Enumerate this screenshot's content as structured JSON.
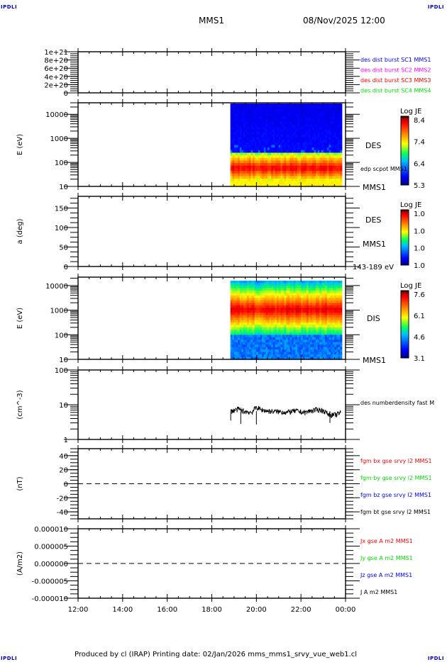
{
  "header": {
    "corner_mark": "IPDLI",
    "spacecraft": "MMS1",
    "datetime": "08/Nov/2025 12:00"
  },
  "footer": {
    "text": "Produced by cl (IRAP)   Printing date: 02/Jan/2026   mms_mms1_srvy_vue_web1.cl"
  },
  "colors": {
    "blue": "#0000ff",
    "magenta": "#ff00ff",
    "red": "#ff0000",
    "green": "#00e000",
    "black": "#000000"
  },
  "chart_data": {
    "type": "multi-panel time series",
    "x_axis": {
      "range": [
        "12:00",
        "00:00"
      ],
      "tick_labels": [
        "12:00",
        "14:00",
        "16:00",
        "18:00",
        "20:00",
        "22:00",
        "00:00"
      ],
      "data_coverage": [
        "18:50",
        "23:50"
      ]
    },
    "panels": [
      {
        "id": "p1",
        "type": "line",
        "ylabel": "",
        "yscale": "linear",
        "ylim": [
          0,
          1e+21
        ],
        "yticks": [
          0,
          2e+20,
          4e+20,
          6e+20,
          8e+20,
          1e+21
        ],
        "ytick_labels": [
          "0",
          "2e+20",
          "4e+20",
          "6e+20",
          "8e+20",
          "1e+21"
        ],
        "zero_line": true,
        "legend": [
          {
            "label": "des dist burst SC1 MMS1",
            "color": "#0000ff"
          },
          {
            "label": "des dist burst SC2 MMS2",
            "color": "#ff00ff"
          },
          {
            "label": "des dist burst SC3 MMS3",
            "color": "#ff0000"
          },
          {
            "label": "des dist burst SC4 MMS4",
            "color": "#00e000"
          }
        ],
        "series": []
      },
      {
        "id": "p2",
        "type": "heatmap",
        "ylabel": "E (eV)",
        "yscale": "log",
        "ylim": [
          10,
          30000
        ],
        "ytick_labels": [
          "10",
          "100",
          "1000",
          "10000"
        ],
        "right_labels": [
          "DES",
          "edp scpot MMS1",
          "MMS1"
        ],
        "colorbar": {
          "title": "Log JE",
          "min": 5.3,
          "max": 8.4,
          "tick_labels": [
            "8.4",
            "7.4",
            "6.4",
            "5.3"
          ]
        },
        "description": "Electron spectrogram: peak flux ~40-100 eV (red), falling to blue above ~700 eV",
        "peak_energy_eV": 60,
        "cutoff_energy_eV": 700
      },
      {
        "id": "p3",
        "type": "heatmap",
        "ylabel": "a (deg)",
        "yscale": "linear",
        "ylim": [
          0,
          180
        ],
        "ytick_labels": [
          "0",
          "50",
          "100",
          "150"
        ],
        "right_labels": [
          "DES",
          "MMS1",
          "143-189 eV"
        ],
        "colorbar": {
          "title": "Log JE",
          "min": 1.0,
          "max": 1.0,
          "tick_labels": [
            "1.0",
            "1.0",
            "1.0",
            "1.0"
          ]
        },
        "description": "Empty pitch-angle panel"
      },
      {
        "id": "p4",
        "type": "heatmap",
        "ylabel": "E (eV)",
        "yscale": "log",
        "ylim": [
          10,
          22000
        ],
        "ytick_labels": [
          "10",
          "100",
          "1000",
          "10000"
        ],
        "right_labels": [
          "DIS",
          "MMS1"
        ],
        "colorbar": {
          "title": "Log JE",
          "min": 3.1,
          "max": 7.6,
          "tick_labels": [
            "7.6",
            "6.1",
            "4.6",
            "3.1"
          ]
        },
        "description": "Ion spectrogram: peak flux ~1000-3000 eV (red), blue below ~100 eV",
        "peak_energy_eV": 1800
      },
      {
        "id": "p5",
        "type": "line",
        "ylabel": "(cm^-3)",
        "yscale": "log",
        "ylim": [
          1,
          100
        ],
        "ytick_labels": [
          "1",
          "10",
          "100"
        ],
        "legend": [
          {
            "label": "des numberdensity fast M",
            "color": "#000000"
          }
        ],
        "series": [
          {
            "name": "des numberdensity fast",
            "x_hours": [
              18.85,
              19.0,
              19.2,
              19.4,
              19.6,
              19.8,
              20.0,
              20.2,
              20.4,
              20.6,
              20.8,
              21.0,
              21.2,
              21.4,
              21.6,
              21.8,
              22.0,
              22.2,
              22.4,
              22.6,
              22.8,
              23.0,
              23.2,
              23.4,
              23.6,
              23.8
            ],
            "y": [
              6.5,
              6.8,
              7.5,
              6.5,
              6.2,
              6.0,
              8.5,
              7.2,
              6.8,
              6.5,
              6.4,
              6.3,
              6.2,
              6.0,
              6.5,
              6.6,
              6.2,
              6.0,
              6.6,
              7.0,
              7.2,
              6.8,
              5.5,
              5.0,
              5.2,
              6.0
            ]
          }
        ]
      },
      {
        "id": "p6",
        "type": "line",
        "ylabel": "(nT)",
        "yscale": "linear",
        "ylim": [
          -50,
          50
        ],
        "yticks": [
          -40,
          -20,
          0,
          20,
          40
        ],
        "ytick_labels": [
          "-40",
          "-20",
          "0",
          "20",
          "40"
        ],
        "zero_line": true,
        "legend": [
          {
            "label": "fgm bx gse srvy l2 MMS1",
            "color": "#ff0000"
          },
          {
            "label": "fgm by gse srvy l2 MMS1",
            "color": "#00e000"
          },
          {
            "label": "fgm bz gse srvy l2 MMS1",
            "color": "#0000ff"
          },
          {
            "label": "fgm bt gse srvy l2 MMS1",
            "color": "#000000"
          }
        ],
        "series": []
      },
      {
        "id": "p7",
        "type": "line",
        "ylabel": "(A/m2)",
        "yscale": "linear",
        "ylim": [
          -1e-05,
          1e-05
        ],
        "yticks": [
          -1e-05,
          -5e-06,
          0,
          5e-06,
          1e-05
        ],
        "ytick_labels": [
          "-0.000010",
          "-0.000005",
          "0.000000",
          "0.000005",
          "0.000010"
        ],
        "zero_line": true,
        "legend": [
          {
            "label": "Jx gse A m2 MMS1",
            "color": "#ff0000"
          },
          {
            "label": "Jy gse A m2 MMS1",
            "color": "#00e000"
          },
          {
            "label": "Jz gse A m2 MMS1",
            "color": "#0000ff"
          },
          {
            "label": "J A m2 MMS1",
            "color": "#000000"
          }
        ],
        "series": []
      }
    ]
  }
}
